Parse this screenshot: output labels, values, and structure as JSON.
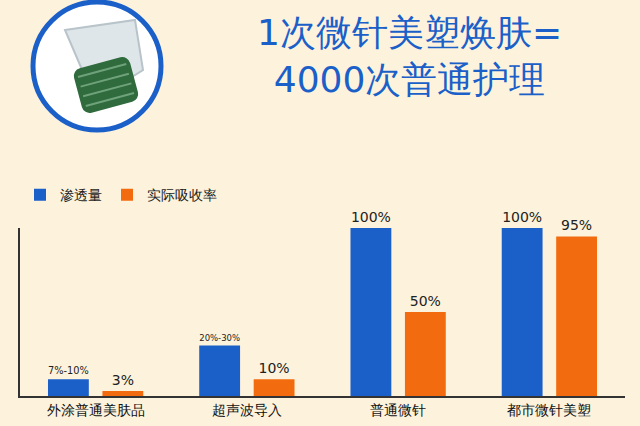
{
  "chart_data": {
    "type": "bar",
    "title": [
      "1次微针美塑焕肤=",
      "4000次普通护理"
    ],
    "categories": [
      "外涂普通美肤品",
      "超声波导入",
      "普通微针",
      "都市微针美塑"
    ],
    "series": [
      {
        "name": "渗透量",
        "color": "#1b5fc9",
        "values": [
          10,
          30,
          100,
          100
        ],
        "value_labels": [
          "7%-10%",
          "20%-30%",
          "100%",
          "100%"
        ]
      },
      {
        "name": "实际吸收率",
        "color": "#f26b0f",
        "values": [
          3,
          10,
          50,
          95
        ],
        "value_labels": [
          "3%",
          "10%",
          "50%",
          "95%"
        ]
      }
    ],
    "ylim": [
      0,
      100
    ],
    "data_labels": true,
    "tick_labels": "x",
    "grid": false,
    "legend": "top left"
  }
}
